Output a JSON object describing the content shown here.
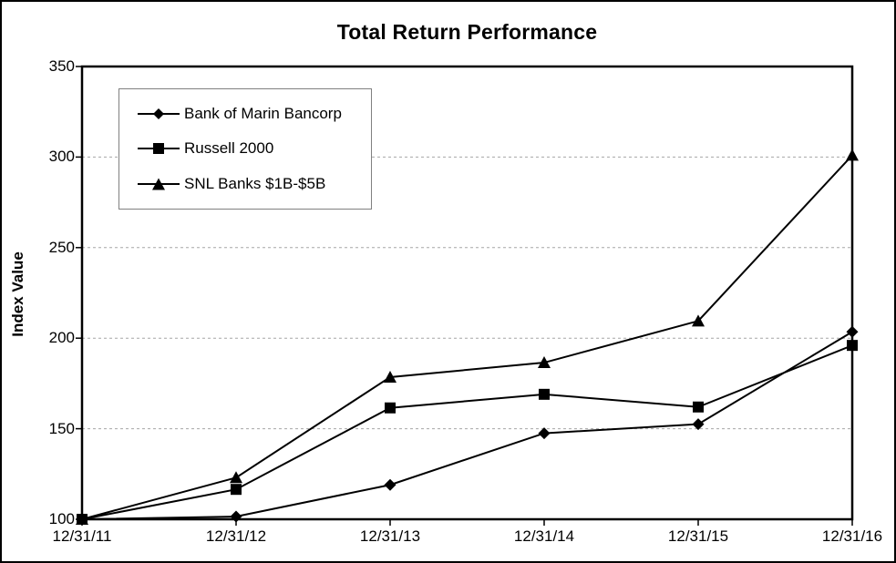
{
  "chart_data": {
    "type": "line",
    "title": "Total Return Performance",
    "xlabel": "",
    "ylabel": "Index Value",
    "categories": [
      "12/31/11",
      "12/31/12",
      "12/31/13",
      "12/31/14",
      "12/31/15",
      "12/31/16"
    ],
    "series": [
      {
        "name": "Bank of Marin Bancorp",
        "marker": "diamond",
        "color": "#000000",
        "values": [
          100,
          101.5,
          119,
          147.5,
          152.5,
          203.5
        ]
      },
      {
        "name": "Russell 2000",
        "marker": "square",
        "color": "#000000",
        "values": [
          100,
          116.5,
          161.5,
          169,
          162,
          196
        ]
      },
      {
        "name": "SNL Banks $1B-$5B",
        "marker": "triangle",
        "color": "#000000",
        "values": [
          100,
          123,
          178.5,
          186.5,
          209.5,
          301
        ]
      }
    ],
    "ylim": [
      100,
      350
    ],
    "yticks": [
      100,
      150,
      200,
      250,
      300,
      350
    ],
    "grid": "horizontal-dashed",
    "gridline_color": "#a6a6a6",
    "frame_color": "#000000",
    "legend_position": "top-left-inside"
  }
}
